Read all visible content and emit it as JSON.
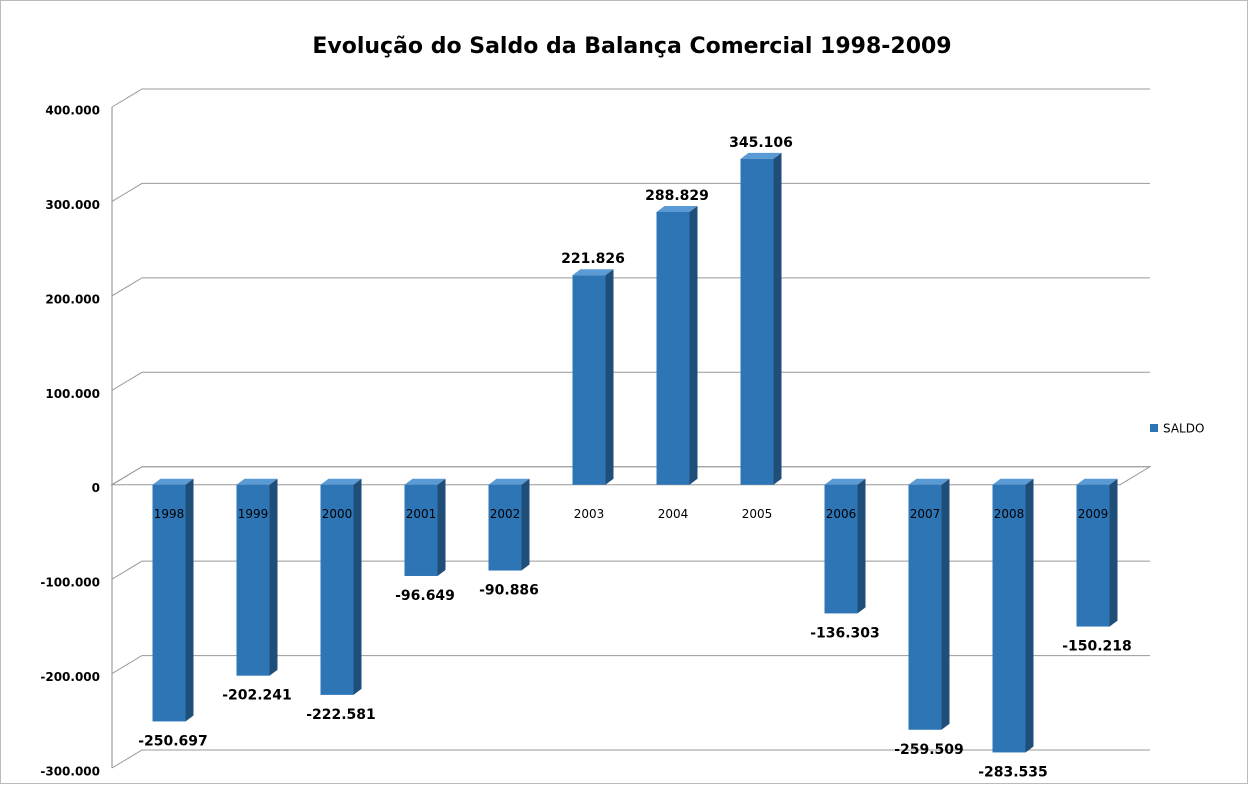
{
  "chart_data": {
    "type": "bar3d",
    "title": "Evolução do  Saldo da Balança Comercial 1998-2009",
    "categories": [
      "1998",
      "1999",
      "2000",
      "2001",
      "2002",
      "2003",
      "2004",
      "2005",
      "2006",
      "2007",
      "2008",
      "2009"
    ],
    "series": [
      {
        "name": "SALDO",
        "color": "#2e75b6",
        "values": [
          -250697,
          -202241,
          -222581,
          -96649,
          -90886,
          221826,
          288829,
          345106,
          -136303,
          -259509,
          -283535,
          -150218
        ],
        "value_labels": [
          "-250.697",
          "-202.241",
          "-222.581",
          "-96.649",
          "-90.886",
          "221.826",
          "288.829",
          "345.106",
          "-136.303",
          "-259.509",
          "-283.535",
          "-150.218"
        ]
      }
    ],
    "ylim": [
      -300000,
      400000
    ],
    "yticks": [
      {
        "value": -300000,
        "label": "-300.000"
      },
      {
        "value": -200000,
        "label": "-200.000"
      },
      {
        "value": -100000,
        "label": "-100.000"
      },
      0,
      {
        "value": 100000,
        "label": "100.000"
      },
      {
        "value": 200000,
        "label": "200.000"
      },
      {
        "value": 300000,
        "label": "300.000"
      },
      {
        "value": 400000,
        "label": "400.000"
      }
    ],
    "grid": true,
    "legend": "right"
  }
}
